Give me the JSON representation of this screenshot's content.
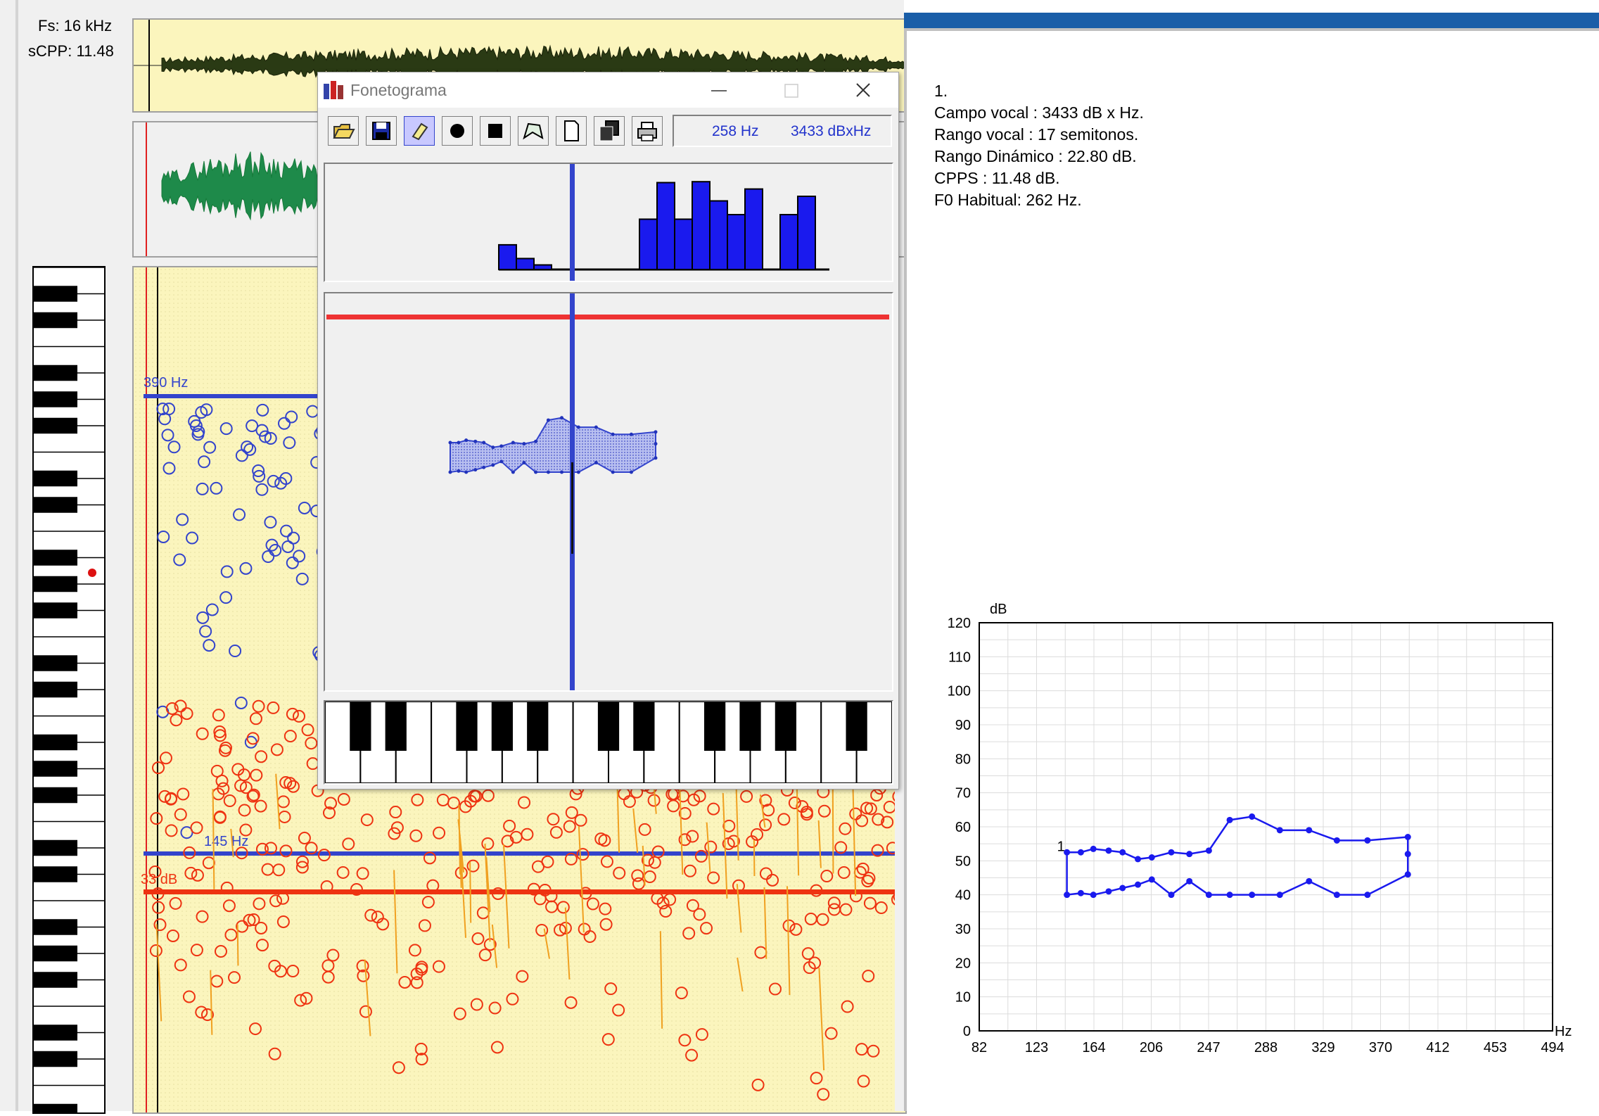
{
  "analysis": {
    "fs_label": "Fs: 16 kHz",
    "scpp_label": "sCPP:  11.48",
    "marker_390": "390 Hz",
    "marker_145": "145 Hz",
    "marker_33": "33 dB",
    "colors": {
      "panel_bg": "#fbf5bd",
      "waveform_top": "#223311",
      "waveform_green": "#1e8a4a",
      "f0_blue": "#3344cc",
      "intensity_red": "#ee3311",
      "orange_trace": "#f0a020"
    }
  },
  "fonetograma": {
    "title": "Fonetograma",
    "readout_hz": "258 Hz",
    "readout_dbxhz": "3433 dBxHz",
    "toolbar": [
      "open-icon",
      "save-icon",
      "eraser-icon",
      "dot-icon",
      "square-icon",
      "polygon-icon",
      "new-page-icon",
      "copy-icon",
      "print-icon"
    ],
    "histogram_values": [
      0.27,
      0.12,
      0.05,
      0,
      0,
      0,
      0,
      0,
      0.55,
      0.95,
      0.55,
      0.96,
      0.75,
      0.6,
      0.88,
      0,
      0.6,
      0.8
    ]
  },
  "report": {
    "lines": [
      "1.",
      "Campo vocal : 3433 dB x Hz.",
      "Rango vocal : 17 semitonos.",
      "Rango Dinámico :  22.80 dB.",
      "CPPS : 11.48 dB.",
      "F0 Habitual: 262 Hz."
    ],
    "chart_data": {
      "type": "line",
      "title": "",
      "xlabel": "Hz",
      "ylabel": "dB",
      "x_ticks": [
        "82",
        "123",
        "164",
        "206",
        "247",
        "288",
        "329",
        "370",
        "412",
        "453",
        "494"
      ],
      "y_ticks": [
        "0",
        "10",
        "20",
        "30",
        "40",
        "50",
        "60",
        "70",
        "80",
        "90",
        "100",
        "110",
        "120"
      ],
      "xlim": [
        82,
        494
      ],
      "ylim": [
        0,
        120
      ],
      "grid": true,
      "series_label": "1",
      "upper_contour": {
        "x": [
          145,
          155,
          164,
          175,
          185,
          196,
          206,
          220,
          233,
          247,
          262,
          278,
          298,
          319,
          339,
          361,
          390
        ],
        "y": [
          52.5,
          52.5,
          53.5,
          53,
          52.5,
          50.5,
          51,
          52.5,
          52,
          53,
          62,
          63,
          59,
          59,
          56,
          56,
          57
        ]
      },
      "lower_contour": {
        "x": [
          390,
          390,
          361,
          339,
          319,
          298,
          278,
          262,
          247,
          233,
          220,
          206,
          196,
          185,
          175,
          164,
          155,
          145
        ],
        "y": [
          52,
          46,
          40,
          40,
          44,
          40,
          40,
          40,
          40,
          44,
          40,
          44.5,
          43,
          42,
          41,
          40,
          40.5,
          40
        ]
      }
    }
  }
}
